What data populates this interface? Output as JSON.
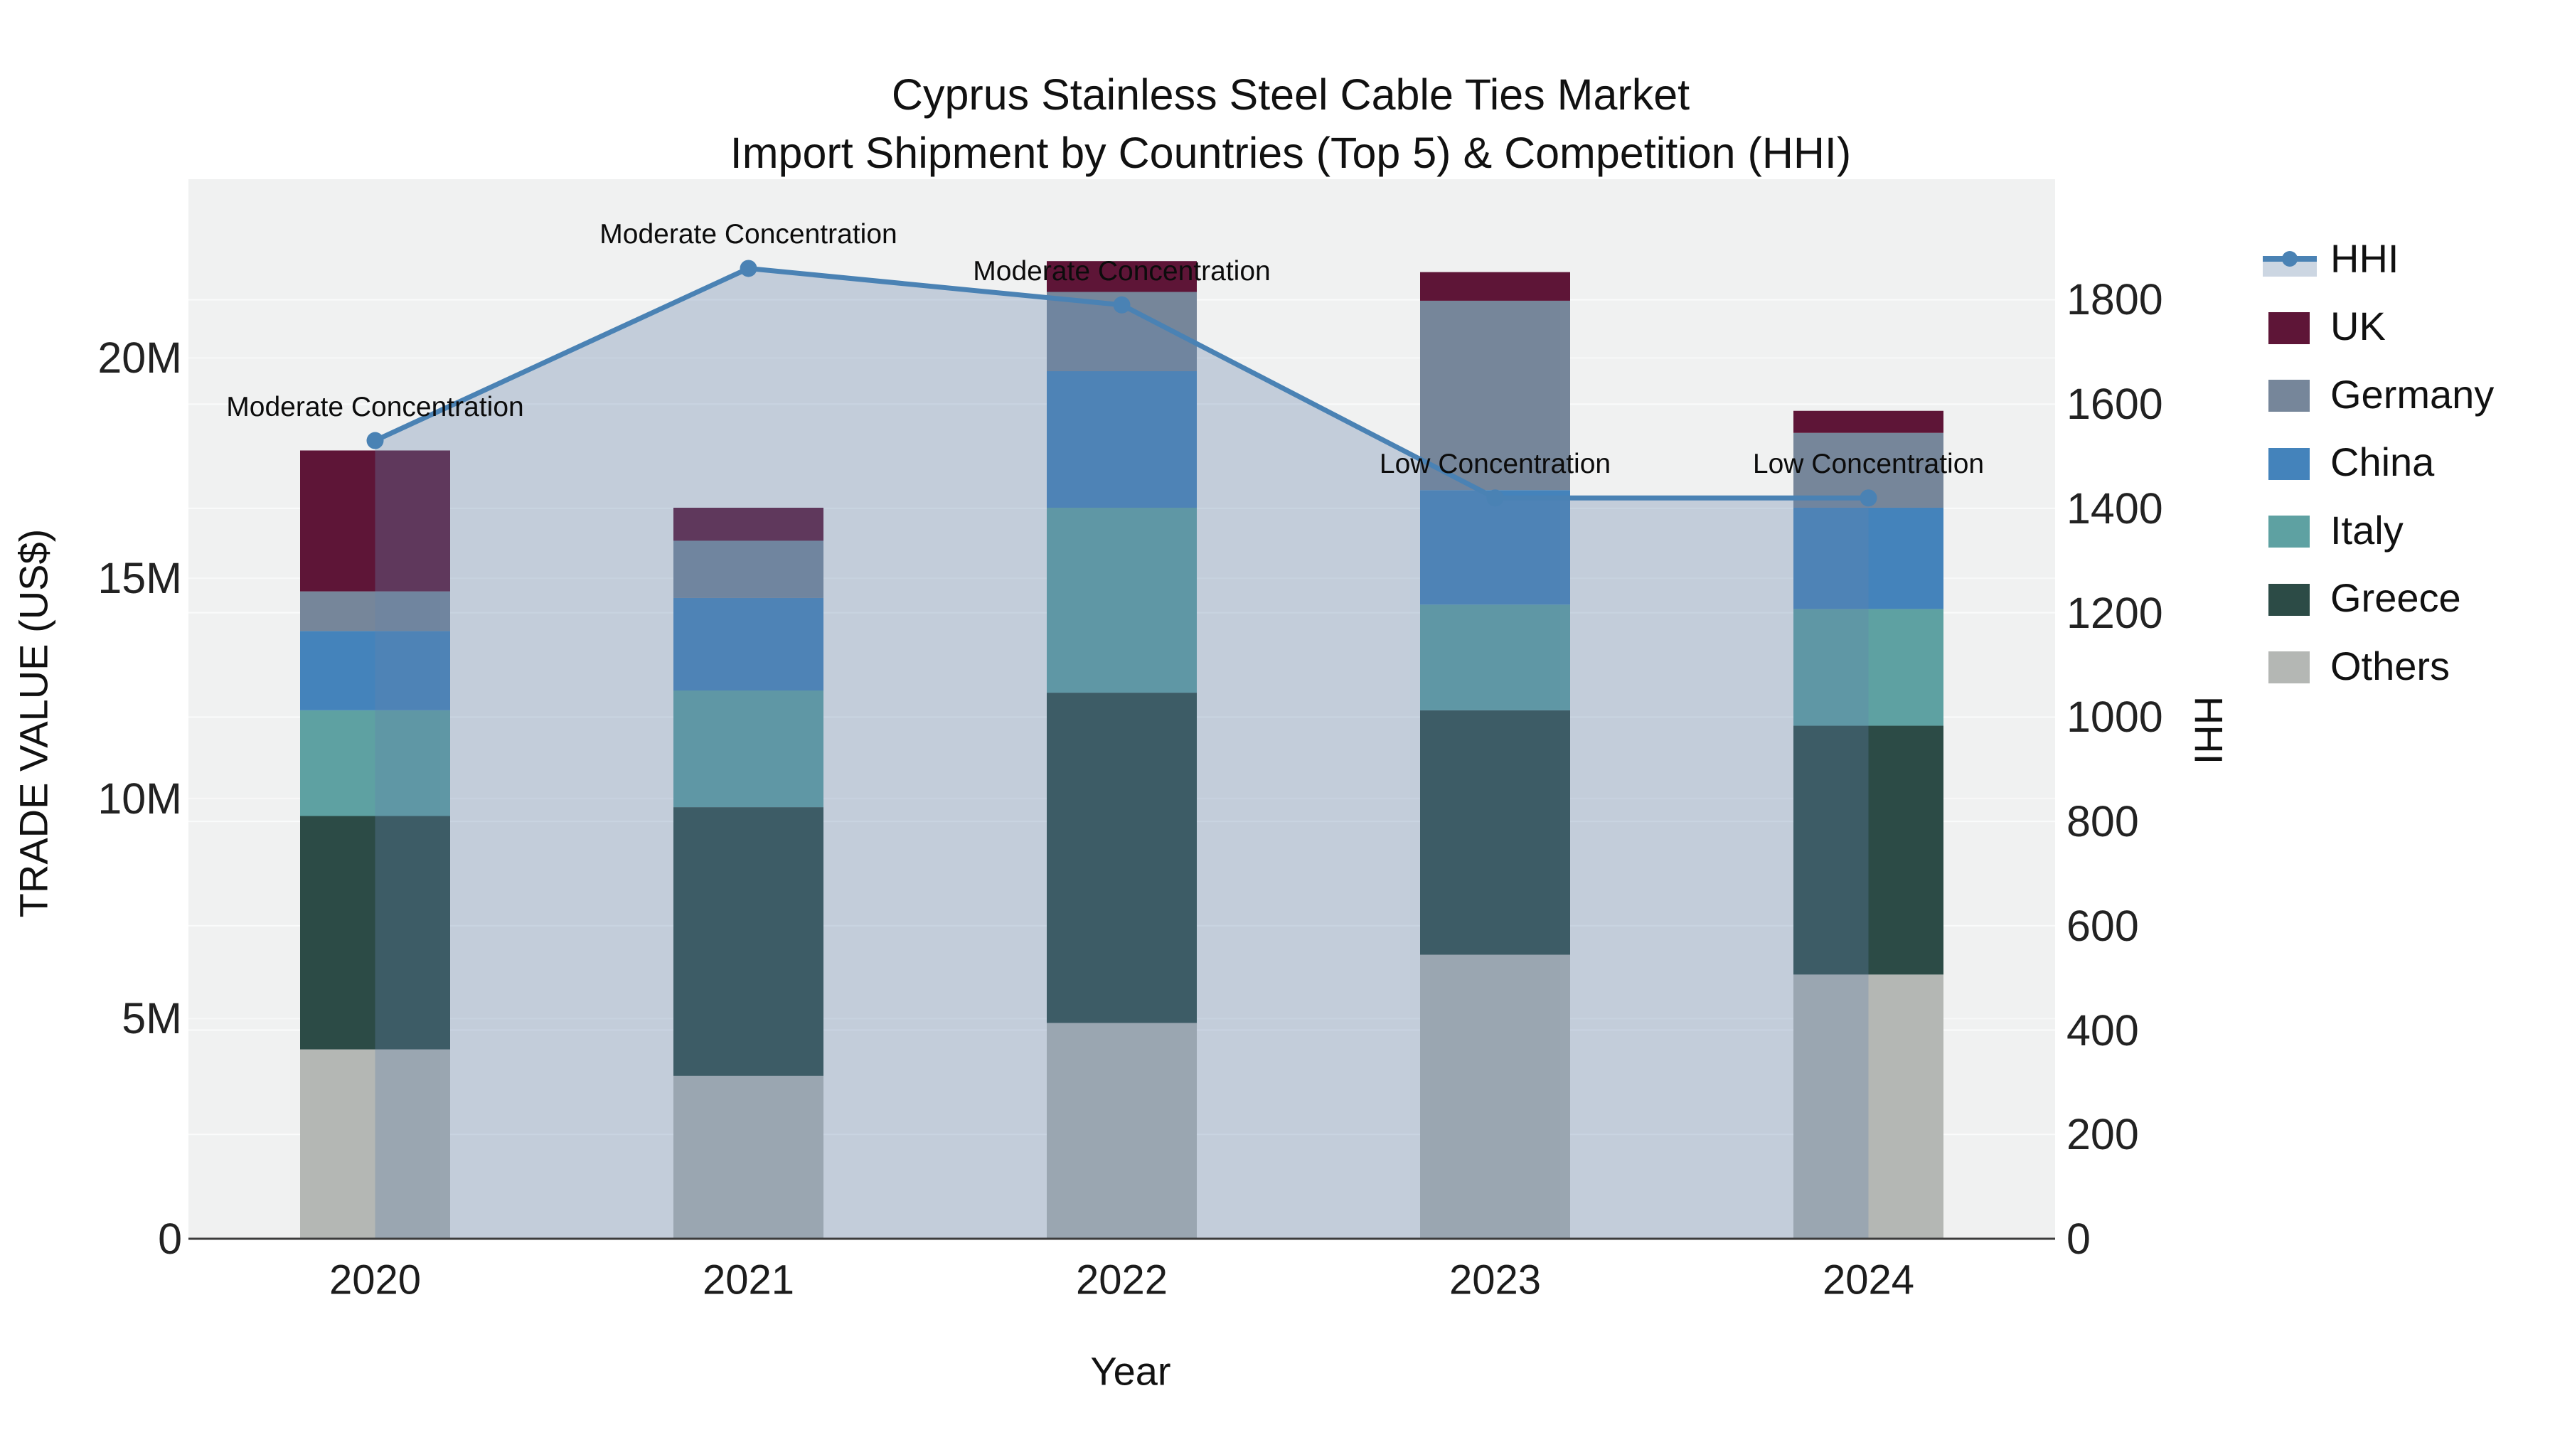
{
  "title": {
    "line1": "Cyprus Stainless Steel Cable Ties Market",
    "line2": "Import Shipment by Countries (Top 5) & Competition (HHI)"
  },
  "axes": {
    "x": {
      "title": "Year",
      "tick_labels": [
        "2020",
        "2021",
        "2022",
        "2023",
        "2024"
      ]
    },
    "y_left": {
      "title": "TRADE VALUE (US$)",
      "tick_labels": [
        "0",
        "5M",
        "10M",
        "15M",
        "20M"
      ],
      "tick_values_musd": [
        0,
        5,
        10,
        15,
        20
      ],
      "range_musd": [
        0,
        24.06
      ]
    },
    "y_right": {
      "title": "HHI",
      "tick_labels": [
        "0",
        "200",
        "400",
        "600",
        "800",
        "1000",
        "1200",
        "1400",
        "1600",
        "1800"
      ],
      "tick_values": [
        0,
        200,
        400,
        600,
        800,
        1000,
        1200,
        1400,
        1600,
        1800
      ],
      "range": [
        0,
        2031
      ]
    }
  },
  "legend": {
    "items": [
      {
        "label": "HHI",
        "type": "line",
        "color": "#4a82b4",
        "band_color": "#ccd6e2"
      },
      {
        "label": "UK",
        "type": "swatch",
        "color": "#5e1537"
      },
      {
        "label": "Germany",
        "type": "swatch",
        "color": "#76869a"
      },
      {
        "label": "China",
        "type": "swatch",
        "color": "#4483bb"
      },
      {
        "label": "Italy",
        "type": "swatch",
        "color": "#5ea1a2"
      },
      {
        "label": "Greece",
        "type": "swatch",
        "color": "#2c4b46"
      },
      {
        "label": "Others",
        "type": "swatch",
        "color": "#b4b7b4"
      }
    ]
  },
  "chart_data": {
    "type": "bar",
    "subtype": "stacked-bars-with-overlay-line",
    "title": "Cyprus Stainless Steel Cable Ties Market — Import Shipment by Countries (Top 5) & Competition (HHI)",
    "categories": [
      "2020",
      "2021",
      "2022",
      "2023",
      "2024"
    ],
    "units": "million US$",
    "xlabel": "Year",
    "ylabel_left": "TRADE VALUE (US$)",
    "ylabel_right": "HHI",
    "ylim_left_musd": [
      0,
      24.06
    ],
    "ylim_right_hhi": [
      0,
      2031
    ],
    "grid": "horizontal",
    "legend_position": "right",
    "series": [
      {
        "name": "UK",
        "color": "#5e1537",
        "values": [
          3.2,
          0.75,
          0.7,
          0.65,
          0.5
        ]
      },
      {
        "name": "Germany",
        "color": "#76869a",
        "values": [
          0.9,
          1.3,
          1.8,
          4.3,
          1.7
        ]
      },
      {
        "name": "China",
        "color": "#4483bb",
        "values": [
          1.8,
          2.1,
          3.1,
          2.6,
          2.3
        ]
      },
      {
        "name": "Italy",
        "color": "#5ea1a2",
        "values": [
          2.4,
          2.65,
          4.2,
          2.4,
          2.65
        ]
      },
      {
        "name": "Greece",
        "color": "#2c4b46",
        "values": [
          5.3,
          6.1,
          7.5,
          5.55,
          5.65
        ]
      },
      {
        "name": "Others",
        "color": "#b4b7b4",
        "values": [
          4.3,
          3.7,
          4.9,
          6.45,
          6.0
        ]
      }
    ],
    "stack_order_bottom_to_top": [
      "Others",
      "Greece",
      "Italy",
      "China",
      "Germany",
      "UK"
    ],
    "bar_totals_musd": [
      17.9,
      16.6,
      22.2,
      21.95,
      18.8
    ],
    "line_series": {
      "name": "HHI",
      "axis": "right",
      "color": "#4a82b4",
      "area_fill": "rgba(100,130,170,0.32)",
      "values": [
        1530,
        1860,
        1790,
        1420,
        1420
      ]
    },
    "annotations": [
      {
        "category": "2020",
        "text": "Moderate Concentration"
      },
      {
        "category": "2021",
        "text": "Moderate Concentration"
      },
      {
        "category": "2022",
        "text": "Moderate Concentration"
      },
      {
        "category": "2023",
        "text": "Low Concentration"
      },
      {
        "category": "2024",
        "text": "Low Concentration"
      }
    ]
  }
}
